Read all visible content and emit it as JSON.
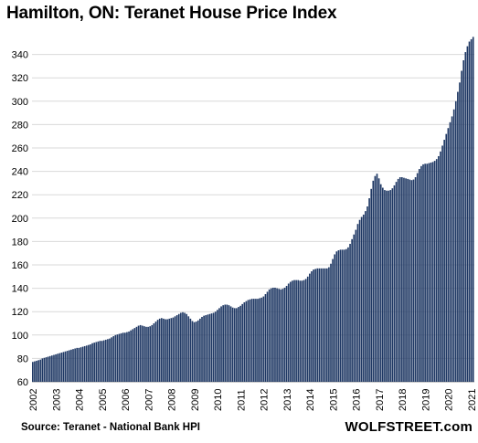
{
  "chart_data": {
    "type": "bar",
    "title": "Hamilton, ON: Teranet House Price Index",
    "xlabel": "",
    "ylabel": "",
    "ylim": [
      60,
      360
    ],
    "yticks": [
      60,
      80,
      100,
      120,
      140,
      160,
      180,
      200,
      220,
      240,
      260,
      280,
      300,
      320,
      340
    ],
    "xticks": [
      "2002",
      "2003",
      "2004",
      "2005",
      "2006",
      "2007",
      "2008",
      "2009",
      "2010",
      "2011",
      "2012",
      "2013",
      "2014",
      "2015",
      "2016",
      "2017",
      "2018",
      "2019",
      "2020",
      "2021"
    ],
    "frequency": "monthly",
    "start": "2002-01",
    "grid": "horizontal",
    "bar_color": "#1f3864",
    "series": [
      {
        "values": [
          77,
          77.5,
          78,
          78.5,
          79,
          80,
          80.5,
          81,
          81.5,
          82,
          82.5,
          83,
          83.5,
          84,
          84.5,
          85,
          85.5,
          86,
          86.5,
          87,
          87.5,
          88,
          88.5,
          89,
          89,
          89.5,
          90,
          90.5,
          91,
          91.5,
          92,
          93,
          93.5,
          94,
          94.5,
          95,
          95,
          95.5,
          96,
          96.5,
          97,
          98,
          99,
          100,
          100.5,
          101,
          101.5,
          102,
          102,
          102.5,
          103,
          104,
          105,
          106,
          107,
          108,
          108.5,
          108,
          107.5,
          107,
          107,
          107.5,
          108.5,
          110,
          111.5,
          113,
          114,
          114.5,
          114,
          113.5,
          113.5,
          114,
          114.5,
          115,
          116,
          117,
          118,
          119,
          119.5,
          119,
          118,
          116,
          114,
          112,
          111,
          111.5,
          112.5,
          114,
          115.5,
          116.5,
          117,
          117.5,
          118,
          118.5,
          119,
          120,
          121.5,
          123,
          124.5,
          125.5,
          126,
          126,
          125.5,
          124.5,
          123.5,
          123,
          123,
          124,
          125,
          126.5,
          128,
          129,
          130,
          130.5,
          131,
          131,
          131,
          131,
          131.5,
          132,
          133,
          135,
          137,
          139,
          140,
          140.5,
          140.5,
          140,
          139.5,
          139,
          139.5,
          140.5,
          142,
          144,
          145.5,
          146.5,
          147,
          147,
          147,
          146.5,
          146.5,
          147,
          148,
          150,
          152.5,
          154.5,
          156,
          156.5,
          157,
          157,
          157,
          157,
          157,
          157,
          158,
          161,
          165,
          169,
          171.5,
          172.5,
          173,
          173,
          173,
          173.5,
          175,
          178,
          182,
          186,
          190,
          195,
          198.5,
          201,
          203,
          206,
          210,
          217,
          225,
          232,
          236,
          238,
          234,
          229,
          226,
          224,
          223.5,
          223.5,
          224,
          225.5,
          228,
          231,
          233.5,
          235,
          235,
          234.5,
          234,
          233.5,
          233,
          232.5,
          233,
          235,
          238.5,
          242,
          244.5,
          246,
          246.5,
          246.5,
          247,
          247.5,
          248,
          249,
          250.5,
          253,
          257,
          262,
          267,
          272,
          277,
          282,
          287,
          293,
          300,
          308,
          316,
          326,
          335,
          342,
          347,
          351,
          353,
          355
        ]
      }
    ]
  },
  "footer": {
    "source": "Source: Teranet - National Bank HPI",
    "brand": "WOLFSTREET.com"
  }
}
